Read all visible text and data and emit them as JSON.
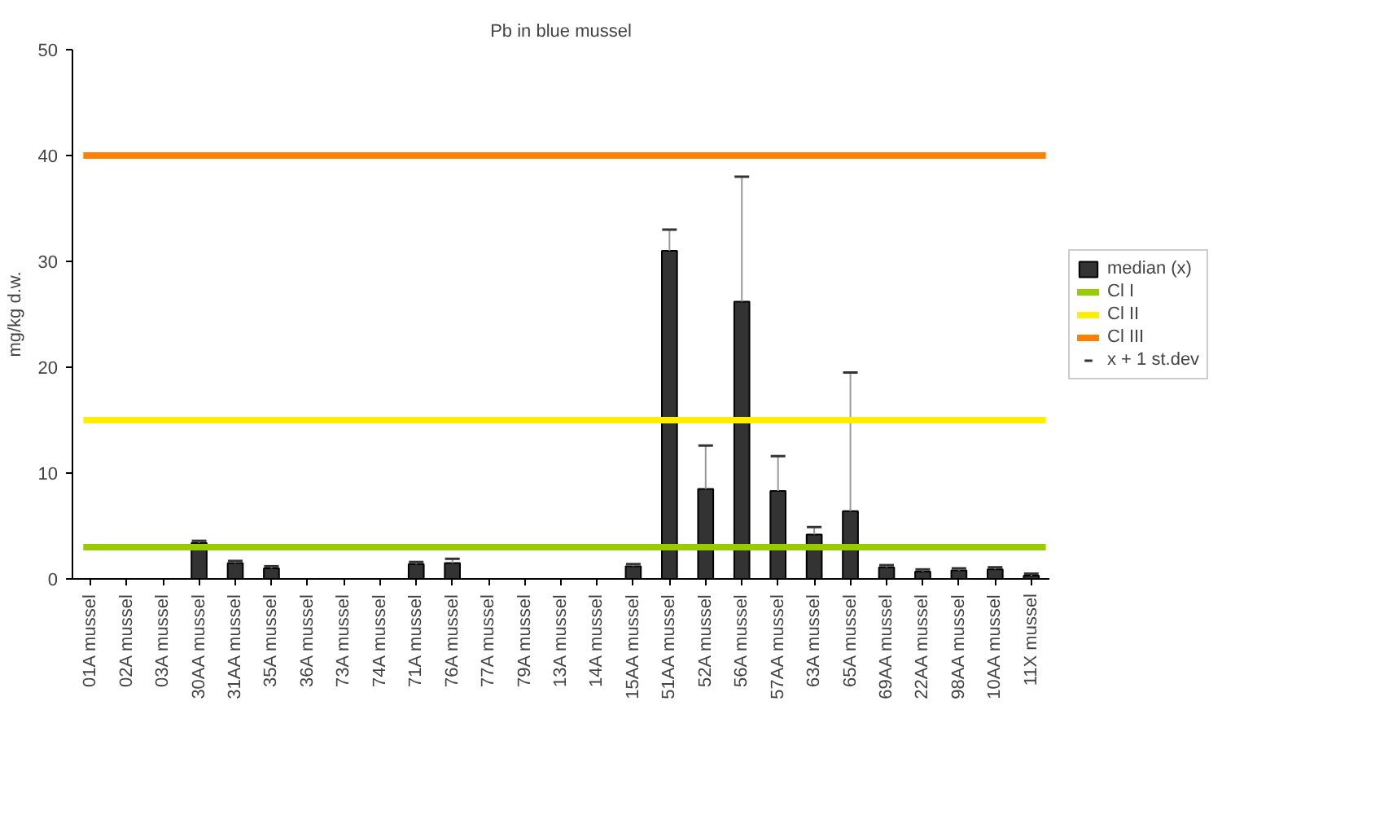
{
  "chart_data": {
    "type": "bar",
    "title": "Pb in blue mussel",
    "ylabel": "mg/kg d.w.",
    "categories": [
      "01A mussel",
      "02A mussel",
      "03A mussel",
      "30AA mussel",
      "31AA mussel",
      "35A mussel",
      "36A mussel",
      "73A mussel",
      "74A mussel",
      "71A mussel",
      "76A mussel",
      "77A mussel",
      "79A mussel",
      "13A mussel",
      "14A mussel",
      "15AA mussel",
      "51AA mussel",
      "52A mussel",
      "56A mussel",
      "57AA mussel",
      "63A mussel",
      "65A mussel",
      "69AA mussel",
      "22AA mussel",
      "98AA mussel",
      "10AA mussel",
      "11X mussel"
    ],
    "series": [
      {
        "name": "median (x)",
        "color": "#333333",
        "values": [
          null,
          null,
          null,
          3.4,
          1.5,
          1.0,
          null,
          null,
          null,
          1.4,
          1.5,
          null,
          null,
          null,
          null,
          1.2,
          31,
          8.5,
          26.2,
          8.3,
          4.2,
          6.4,
          1.1,
          0.7,
          0.8,
          0.9,
          0.3
        ],
        "errors": [
          null,
          null,
          null,
          [
            3.4,
            3.6
          ],
          [
            1.5,
            1.7
          ],
          [
            1.0,
            1.2
          ],
          null,
          null,
          null,
          [
            1.4,
            1.6
          ],
          [
            1.5,
            1.9
          ],
          null,
          null,
          null,
          null,
          [
            1.2,
            1.4
          ],
          [
            31,
            33
          ],
          [
            8.5,
            12.6
          ],
          [
            26.2,
            38
          ],
          [
            8.3,
            11.6
          ],
          [
            4.2,
            4.9
          ],
          [
            6.4,
            19.5
          ],
          [
            1.1,
            1.3
          ],
          [
            0.7,
            0.9
          ],
          [
            0.8,
            1.0
          ],
          [
            0.9,
            1.1
          ],
          [
            0.3,
            0.5
          ]
        ]
      }
    ],
    "ref_lines": [
      {
        "axis": "y",
        "value": 3,
        "label": "Cl I",
        "color": "#99cc00"
      },
      {
        "axis": "y",
        "value": 15,
        "label": "Cl II",
        "color": "#ffee00"
      },
      {
        "axis": "y",
        "value": 40,
        "label": "Cl III",
        "color": "#ff8000"
      }
    ],
    "annotations": [
      "x + 1 st.dev"
    ],
    "ylim": [
      0,
      50
    ],
    "yticks": [
      0,
      10,
      20,
      30,
      40,
      50
    ],
    "grid": false,
    "legend": "right"
  }
}
